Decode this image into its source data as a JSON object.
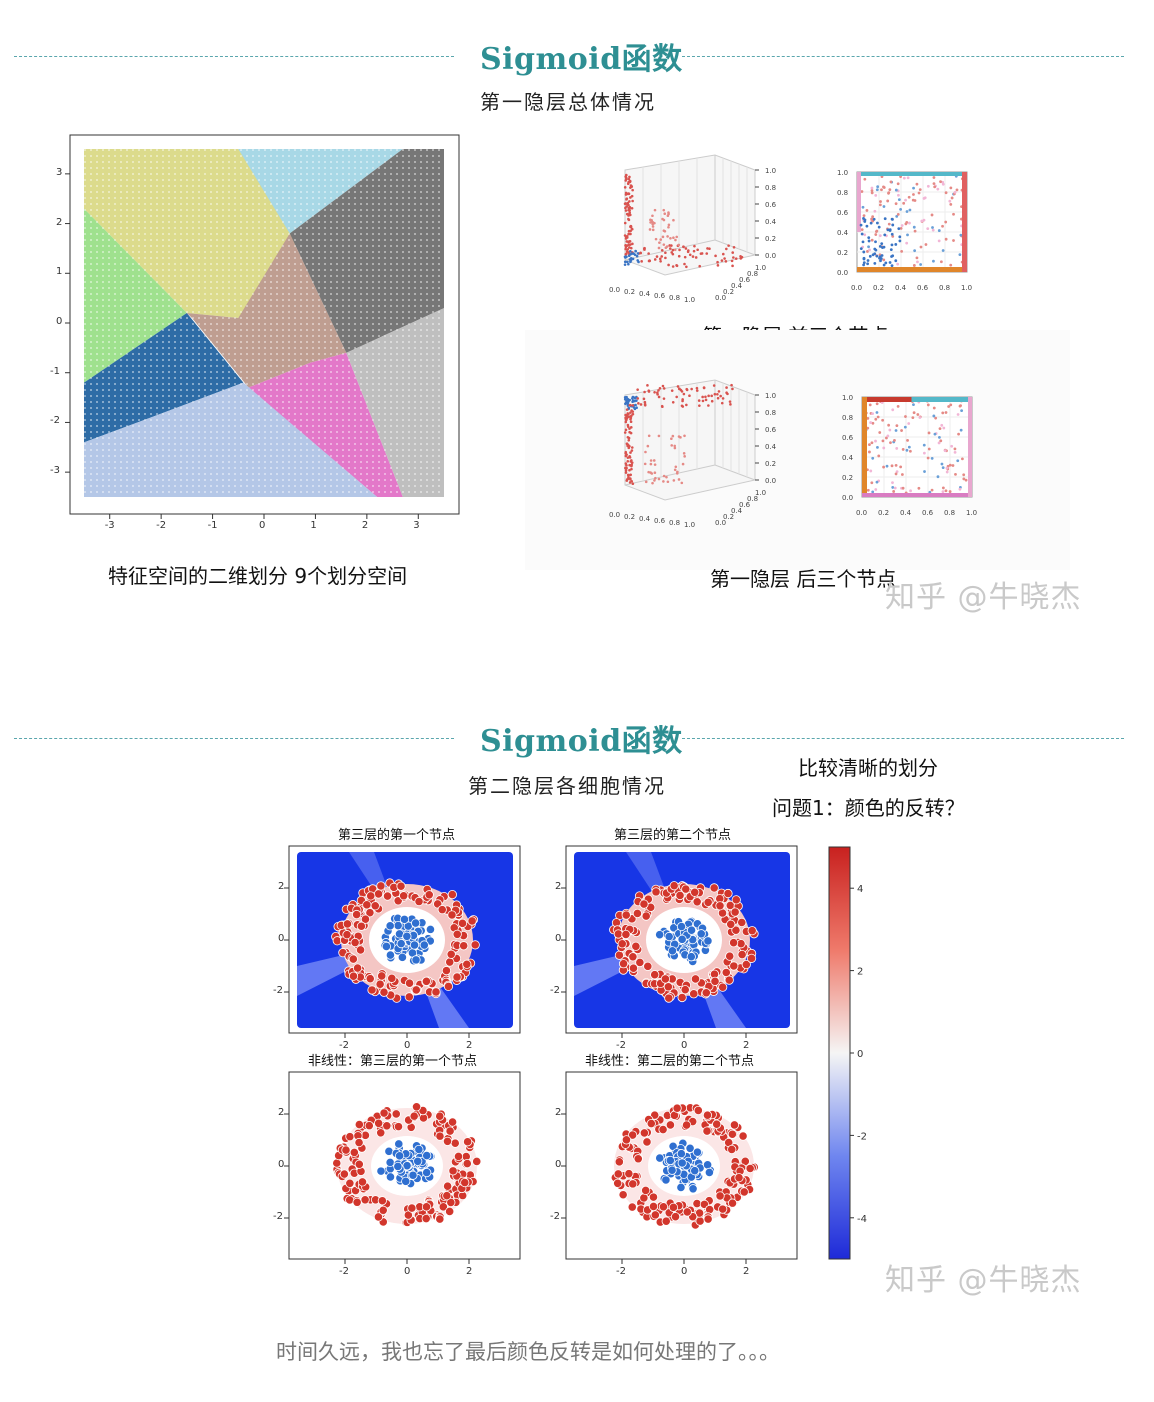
{
  "section1": {
    "title": "Sigmoid函数",
    "subtitle": "第一隐层总体情况",
    "left_caption": "特征空间的二维划分 9个划分空间",
    "right_top_caption": "第一隐层 前三个节点",
    "right_bottom_caption": "第一隐层 后三个节点",
    "watermark": "知乎 @牛晓杰"
  },
  "section2": {
    "title": "Sigmoid函数",
    "subtitle": "第二隐层各细胞情况",
    "note1": "比较清晰的划分",
    "note2": "问题1：颜色的反转？",
    "plot_titles": [
      "第三层的第一个节点",
      "第三层的第二个节点",
      "非线性：第三层的第一个节点",
      "非线性：第二层的第二个节点"
    ],
    "watermark": "知乎 @牛晓杰"
  },
  "footer": "时间久远，我也忘了最后颜色反转是如何处理的了。。。",
  "chart_data": [
    {
      "type": "scatter",
      "x_ticks": [
        "-3",
        "-2",
        "-1",
        "0",
        "1",
        "2",
        "3"
      ],
      "y_ticks": [
        "3",
        "2",
        "1",
        "0",
        "-1",
        "-2",
        "-3"
      ],
      "xlim": [
        -3.5,
        3.5
      ],
      "ylim": [
        -3.5,
        3.5
      ],
      "regions": 9,
      "colors": [
        "#dcdb8c",
        "#a8d8e6",
        "#777777",
        "#9fe18e",
        "#bf9e91",
        "#2e6ca6",
        "#e378c9",
        "#b4c7e7",
        "#bfbfbf"
      ]
    },
    {
      "type": "scatter",
      "axis_ticks": [
        "0.0",
        "0.2",
        "0.4",
        "0.6",
        "0.8",
        "1.0"
      ]
    },
    {
      "type": "heatmap",
      "x_ticks": [
        "-2",
        "0",
        "2"
      ],
      "y_ticks": [
        "2",
        "0",
        "-2"
      ],
      "colorbar_ticks": [
        "4",
        "2",
        "0",
        "-2",
        "-4"
      ],
      "colorbar_range": [
        -5,
        5
      ],
      "classes": [
        "red outer ring",
        "blue inner cluster"
      ]
    }
  ]
}
